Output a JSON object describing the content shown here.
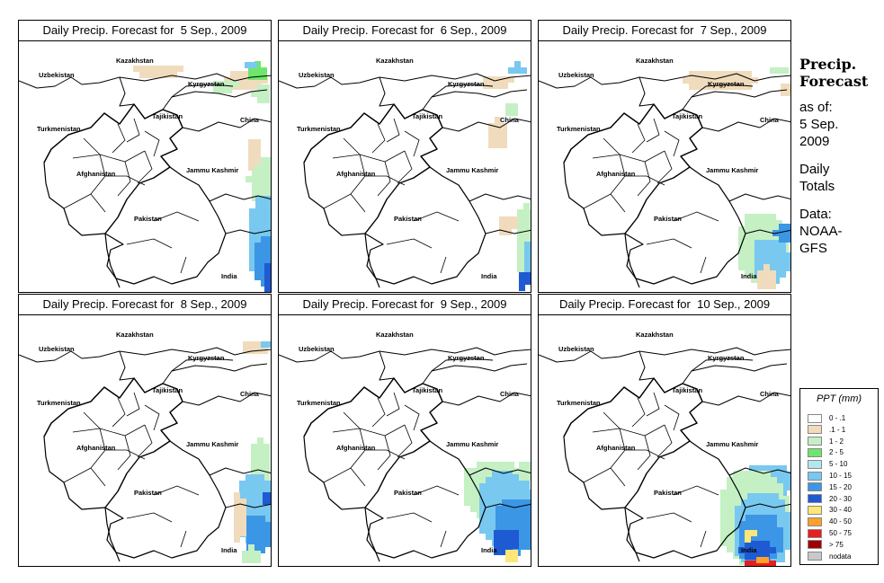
{
  "panels": [
    {
      "title": "Daily Precip. Forecast for  5 Sep., 2009",
      "variant": 0
    },
    {
      "title": "Daily Precip. Forecast for  6 Sep., 2009",
      "variant": 1
    },
    {
      "title": "Daily Precip. Forecast for  7 Sep., 2009",
      "variant": 2
    },
    {
      "title": "Daily Precip. Forecast for  8 Sep., 2009",
      "variant": 3
    },
    {
      "title": "Daily Precip. Forecast for  9 Sep., 2009",
      "variant": 4
    },
    {
      "title": "Daily Precip. Forecast for  10 Sep., 2009",
      "variant": 5
    }
  ],
  "place_labels": [
    "Kazakhstan",
    "Uzbekistan",
    "Kyrgyzstan",
    "Tajikistan",
    "Turkmenistan",
    "China",
    "Afghanistan",
    "Jammu Kashmir",
    "Pakistan",
    "India"
  ],
  "sidebar": {
    "title_line1": "Precip.",
    "title_line2": "Forecast",
    "asof_line1": "as of:",
    "asof_line2": "5 Sep.",
    "asof_line3": "2009",
    "daily_line1": "Daily",
    "daily_line2": "Totals",
    "data_line1": "Data:",
    "data_line2": "NOAA-",
    "data_line3": "GFS"
  },
  "legend": {
    "title": "PPT (mm)",
    "items": [
      {
        "label": "0 - .1",
        "color": "#ffffff"
      },
      {
        "label": ".1 - 1",
        "color": "#f0dcbc"
      },
      {
        "label": "1 - 2",
        "color": "#c4f0c4"
      },
      {
        "label": "2 - 5",
        "color": "#6ee66e"
      },
      {
        "label": "5 - 10",
        "color": "#b4e6f0"
      },
      {
        "label": "10 - 15",
        "color": "#78c8f0"
      },
      {
        "label": "15 - 20",
        "color": "#3c96e6"
      },
      {
        "label": "20 - 30",
        "color": "#1e5ad2"
      },
      {
        "label": "30 - 40",
        "color": "#ffe678"
      },
      {
        "label": "40 - 50",
        "color": "#ffa028"
      },
      {
        "label": "50 - 75",
        "color": "#e61e1e"
      },
      {
        "label": "> 75",
        "color": "#a00000"
      },
      {
        "label": "nodata",
        "color": "#c8c8c8"
      }
    ]
  }
}
